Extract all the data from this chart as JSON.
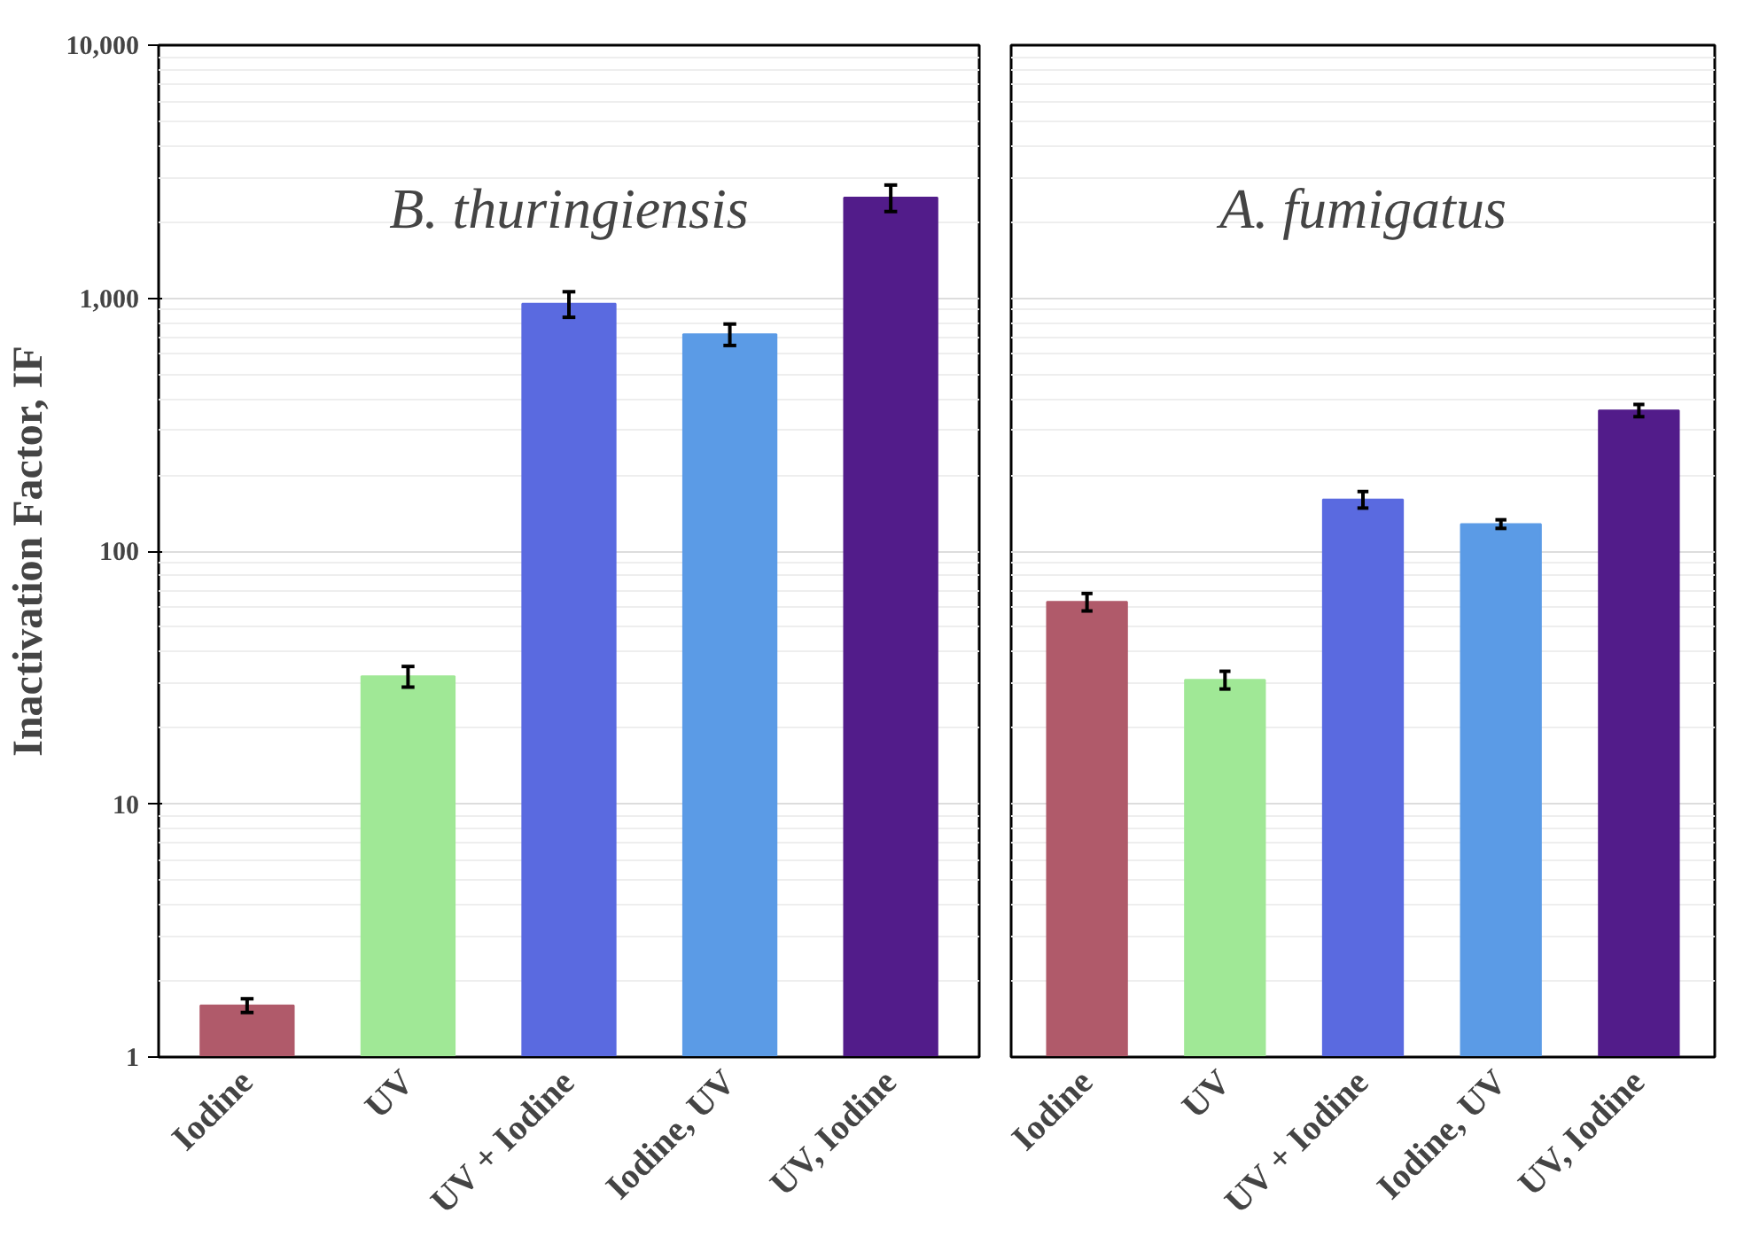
{
  "chart_data": [
    {
      "type": "bar",
      "title": "B. thuringiensis",
      "ylabel": "Inactivation Factor, IF",
      "categories": [
        "Iodine",
        "UV",
        "UV + Iodine",
        "Iodine, UV",
        "UV, Iodine"
      ],
      "values": [
        1.6,
        32,
        950,
        720,
        2500
      ],
      "errors": [
        0.1,
        3,
        110,
        70,
        300
      ],
      "colors": [
        "#b05a6a",
        "#a0e896",
        "#5a6ae0",
        "#5b9be6",
        "#521c8a"
      ],
      "log": true,
      "ylim": [
        1,
        10000
      ],
      "yticks": [
        1,
        10,
        100,
        {
          "value": 1000,
          "label": "1,000"
        },
        {
          "value": 10000,
          "label": "10,000"
        }
      ],
      "grid": "y"
    },
    {
      "type": "bar",
      "title": "A. fumigatus",
      "categories": [
        "Iodine",
        "UV",
        "UV + Iodine",
        "Iodine, UV",
        "UV, Iodine"
      ],
      "values": [
        63,
        31,
        160,
        128,
        360
      ],
      "errors": [
        5,
        2.5,
        12,
        5,
        20
      ],
      "colors": [
        "#b05a6a",
        "#a0e896",
        "#5a6ae0",
        "#5b9be6",
        "#521c8a"
      ],
      "log": true,
      "ylim": [
        1,
        10000
      ],
      "yticks": [
        1,
        10,
        100,
        1000,
        10000
      ],
      "grid": "y",
      "tick_labels": "x"
    }
  ]
}
